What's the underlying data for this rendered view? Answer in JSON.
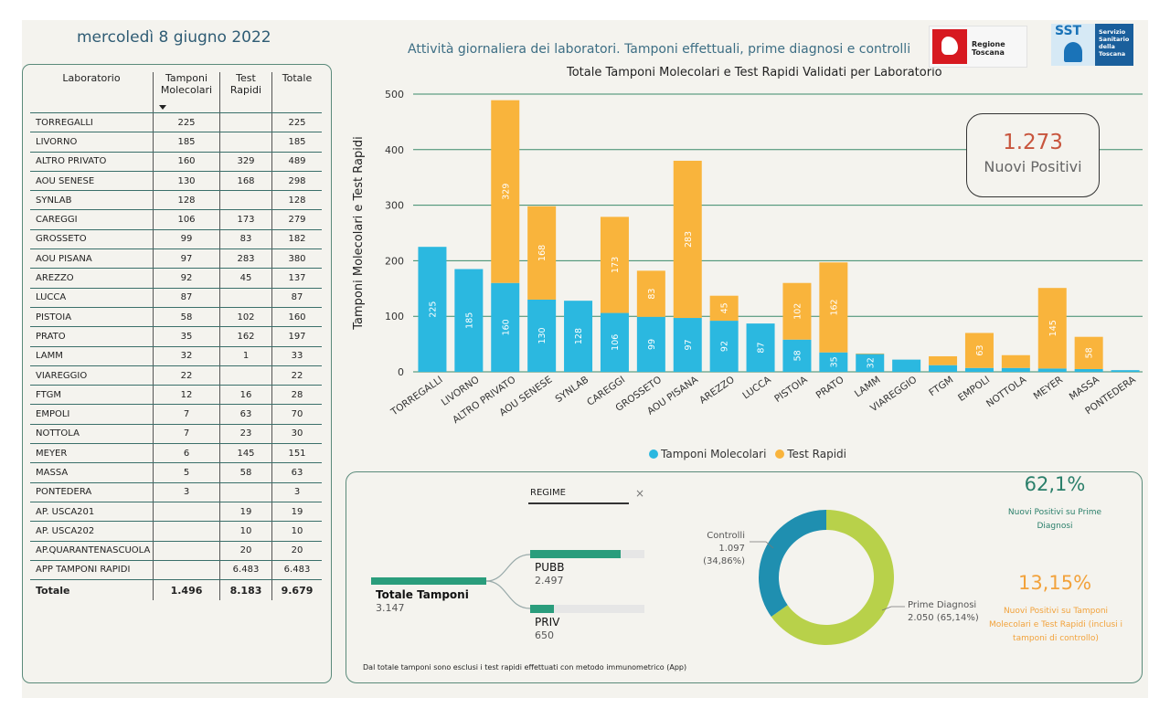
{
  "header": {
    "date": "mercoledì 8 giugno 2022",
    "subtitle": "Attività giornaliera dei laboratori. Tamponi effettuali, prime diagnosi e controlli",
    "logo_rt": "Regione Toscana",
    "logo_sst_short": "SST",
    "logo_sst_lines": [
      "Servizio",
      "Sanitario",
      "della",
      "Toscana"
    ]
  },
  "table": {
    "headers": {
      "lab": "Laboratorio",
      "mol": "Tamponi Molecolari",
      "rap": "Test Rapidi",
      "tot": "Totale"
    },
    "rows": [
      {
        "name": "TORREGALLI",
        "mol": "225",
        "rap": "",
        "tot": "225"
      },
      {
        "name": "LIVORNO",
        "mol": "185",
        "rap": "",
        "tot": "185"
      },
      {
        "name": "ALTRO PRIVATO",
        "mol": "160",
        "rap": "329",
        "tot": "489"
      },
      {
        "name": "AOU SENESE",
        "mol": "130",
        "rap": "168",
        "tot": "298"
      },
      {
        "name": "SYNLAB",
        "mol": "128",
        "rap": "",
        "tot": "128"
      },
      {
        "name": "CAREGGI",
        "mol": "106",
        "rap": "173",
        "tot": "279"
      },
      {
        "name": "GROSSETO",
        "mol": "99",
        "rap": "83",
        "tot": "182"
      },
      {
        "name": "AOU PISANA",
        "mol": "97",
        "rap": "283",
        "tot": "380"
      },
      {
        "name": "AREZZO",
        "mol": "92",
        "rap": "45",
        "tot": "137"
      },
      {
        "name": "LUCCA",
        "mol": "87",
        "rap": "",
        "tot": "87"
      },
      {
        "name": "PISTOIA",
        "mol": "58",
        "rap": "102",
        "tot": "160"
      },
      {
        "name": "PRATO",
        "mol": "35",
        "rap": "162",
        "tot": "197"
      },
      {
        "name": "LAMM",
        "mol": "32",
        "rap": "1",
        "tot": "33"
      },
      {
        "name": "VIAREGGIO",
        "mol": "22",
        "rap": "",
        "tot": "22"
      },
      {
        "name": "FTGM",
        "mol": "12",
        "rap": "16",
        "tot": "28"
      },
      {
        "name": "EMPOLI",
        "mol": "7",
        "rap": "63",
        "tot": "70"
      },
      {
        "name": "NOTTOLA",
        "mol": "7",
        "rap": "23",
        "tot": "30"
      },
      {
        "name": "MEYER",
        "mol": "6",
        "rap": "145",
        "tot": "151"
      },
      {
        "name": "MASSA",
        "mol": "5",
        "rap": "58",
        "tot": "63"
      },
      {
        "name": "PONTEDERA",
        "mol": "3",
        "rap": "",
        "tot": "3"
      },
      {
        "name": "AP. USCA201",
        "mol": "",
        "rap": "19",
        "tot": "19"
      },
      {
        "name": "AP. USCA202",
        "mol": "",
        "rap": "10",
        "tot": "10"
      },
      {
        "name": "AP.QUARANTENASCUOLA",
        "mol": "",
        "rap": "20",
        "tot": "20"
      },
      {
        "name": "APP TAMPONI RAPIDI",
        "mol": "",
        "rap": "6.483",
        "tot": "6.483"
      }
    ],
    "total": {
      "name": "Totale",
      "mol": "1.496",
      "rap": "8.183",
      "tot": "9.679"
    }
  },
  "chart_data": [
    {
      "type": "bar",
      "stacked": true,
      "title": "Totale Tamponi Molecolari e Test Rapidi Validati per Laboratorio",
      "ylabel": "Tamponi Molecolari e Test Rapidi",
      "ylim": [
        0,
        500
      ],
      "yticks": [
        0,
        100,
        200,
        300,
        400,
        500
      ],
      "grid": true,
      "legend": "bottom-center",
      "categories": [
        "TORREGALLI",
        "LIVORNO",
        "ALTRO PRIVATO",
        "AOU SENESE",
        "SYNLAB",
        "CAREGGI",
        "GROSSETO",
        "AOU PISANA",
        "AREZZO",
        "LUCCA",
        "PISTOIA",
        "PRATO",
        "LAMM",
        "VIAREGGIO",
        "FTGM",
        "EMPOLI",
        "NOTTOLA",
        "MEYER",
        "MASSA",
        "PONTEDERA"
      ],
      "series": [
        {
          "name": "Tamponi Molecolari",
          "color": "#2bb8e0",
          "values": [
            225,
            185,
            160,
            130,
            128,
            106,
            99,
            97,
            92,
            87,
            58,
            35,
            32,
            22,
            12,
            7,
            7,
            6,
            5,
            3
          ]
        },
        {
          "name": "Test Rapidi",
          "color": "#f9b43c",
          "values": [
            0,
            0,
            329,
            168,
            0,
            173,
            83,
            283,
            45,
            0,
            102,
            162,
            1,
            0,
            16,
            63,
            23,
            145,
            58,
            0
          ]
        }
      ],
      "data_labels": {
        "Tamponi Molecolari": [
          "225",
          "185",
          "160",
          "130",
          "128",
          "106",
          "99",
          "97",
          "92",
          "87",
          "58",
          "35",
          "32",
          "",
          "",
          "",
          "",
          "",
          "",
          ""
        ],
        "Test Rapidi": [
          "",
          "",
          "329",
          "168",
          "",
          "173",
          "83",
          "283",
          "45",
          "",
          "102",
          "162",
          "",
          "",
          "",
          "63",
          "",
          "145",
          "58",
          ""
        ]
      }
    },
    {
      "type": "pie",
      "donut": true,
      "slices": [
        {
          "label": "Prime Diagnosi",
          "value": 2050,
          "display": "2.050 (65,14%)",
          "color": "#b8d14a"
        },
        {
          "label": "Controlli",
          "value": 1097,
          "display": "1.097 (34,86%)",
          "color": "#1f8fb0"
        }
      ]
    }
  ],
  "kpi": {
    "value": "1.273",
    "label": "Nuovi Positivi"
  },
  "decomposition": {
    "filter_label": "REGIME",
    "clear_icon": "×",
    "total_label": "Totale Tamponi",
    "total_value": "3.147",
    "total_num": 3147,
    "branches": [
      {
        "label": "PUBB",
        "value": "2.497",
        "num": 2497,
        "fraction": 0.7935
      },
      {
        "label": "PRIV",
        "value": "650",
        "num": 650,
        "fraction": 0.2065
      }
    ]
  },
  "percentages": [
    {
      "value": "62,1%",
      "label": "Nuovi Positivi su Prime Diagnosi"
    },
    {
      "value": "13,15%",
      "label": "Nuovi Positivi su Tamponi Molecolari e Test Rapidi (inclusi i tamponi di controllo)"
    }
  ],
  "note": "Dal totale tamponi sono esclusi i test rapidi effettuati con metodo immunometrico (App)",
  "colors": {
    "molecular": "#2bb8e0",
    "rapid": "#f9b43c",
    "grid": "#3a8a6a",
    "accent_green": "#2a9d7c"
  }
}
